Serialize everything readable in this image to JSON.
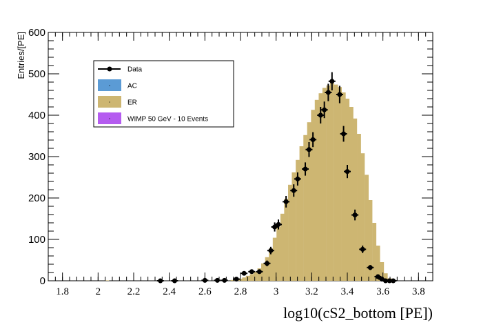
{
  "chart_data": {
    "type": "bar",
    "xlabel": "log10(cS2_bottom [PE])",
    "ylabel": "Entries/[PE]",
    "xlim": [
      1.72,
      3.88
    ],
    "ylim": [
      0,
      600
    ],
    "x_ticks": [
      1.8,
      2,
      2.2,
      2.4,
      2.6,
      2.8,
      3,
      3.2,
      3.4,
      3.6,
      3.8
    ],
    "x_tick_labels": [
      "1.8",
      "2",
      "2.2",
      "2.4",
      "2.6",
      "2.8",
      "3",
      "3.2",
      "3.4",
      "3.6",
      "3.8"
    ],
    "y_ticks": [
      0,
      100,
      200,
      300,
      400,
      500,
      600
    ],
    "y_tick_labels": [
      "0",
      "100",
      "200",
      "300",
      "400",
      "500",
      "600"
    ],
    "grid": false,
    "legend_position": "top-left",
    "legend": [
      {
        "label": "Data",
        "style": "marker-line",
        "color": "#000000"
      },
      {
        "label": "AC",
        "style": "fill",
        "color": "#5b9bd5"
      },
      {
        "label": "ER",
        "style": "fill",
        "color": "#cdb672"
      },
      {
        "label": "WIMP 50 GeV - 10 Events",
        "style": "fill",
        "color": "#b55cf0"
      }
    ],
    "bin_width": 0.0215,
    "stacked_hist": {
      "name": "ER",
      "color": "#cdb672",
      "x_center": [
        2.05,
        2.35,
        2.43,
        2.6,
        2.67,
        2.71,
        2.755,
        2.777,
        2.798,
        2.82,
        2.841,
        2.863,
        2.884,
        2.906,
        2.927,
        2.949,
        2.97,
        2.992,
        3.013,
        3.035,
        3.056,
        3.078,
        3.099,
        3.121,
        3.142,
        3.164,
        3.185,
        3.207,
        3.228,
        3.25,
        3.271,
        3.293,
        3.314,
        3.336,
        3.357,
        3.379,
        3.4,
        3.422,
        3.443,
        3.465,
        3.486,
        3.508,
        3.529,
        3.551,
        3.572,
        3.594,
        3.615,
        3.637,
        3.658
      ],
      "values": [
        1,
        1,
        1,
        1,
        1,
        2,
        2,
        3,
        5,
        8,
        12,
        16,
        22,
        30,
        42,
        57,
        78,
        104,
        130,
        162,
        198,
        232,
        262,
        292,
        325,
        352,
        383,
        413,
        437,
        453,
        466,
        472,
        478,
        474,
        468,
        455,
        440,
        420,
        392,
        355,
        308,
        256,
        195,
        140,
        85,
        45,
        18,
        6,
        2
      ]
    },
    "data_points": {
      "name": "Data",
      "x": [
        2.35,
        2.43,
        2.6,
        2.67,
        2.71,
        2.777,
        2.82,
        2.863,
        2.906,
        2.949,
        2.97,
        2.992,
        3.013,
        3.056,
        3.099,
        3.121,
        3.164,
        3.185,
        3.207,
        3.25,
        3.271,
        3.293,
        3.314,
        3.357,
        3.379,
        3.4,
        3.443,
        3.486,
        3.529,
        3.572,
        3.594,
        3.615,
        3.637,
        3.658
      ],
      "y": [
        0,
        0,
        1,
        1,
        1,
        4,
        18,
        22,
        22,
        42,
        73,
        130,
        136,
        191,
        218,
        246,
        270,
        317,
        341,
        400,
        413,
        455,
        482,
        450,
        355,
        264,
        159,
        76,
        32,
        10,
        4,
        0,
        0,
        0
      ],
      "yerr": [
        1,
        1,
        1,
        1,
        1,
        2,
        4,
        5,
        5,
        7,
        9,
        11,
        12,
        14,
        15,
        16,
        16,
        18,
        18,
        20,
        20,
        21,
        22,
        21,
        19,
        16,
        13,
        9,
        6,
        3,
        2,
        1,
        1,
        1
      ],
      "color": "#000000"
    }
  }
}
